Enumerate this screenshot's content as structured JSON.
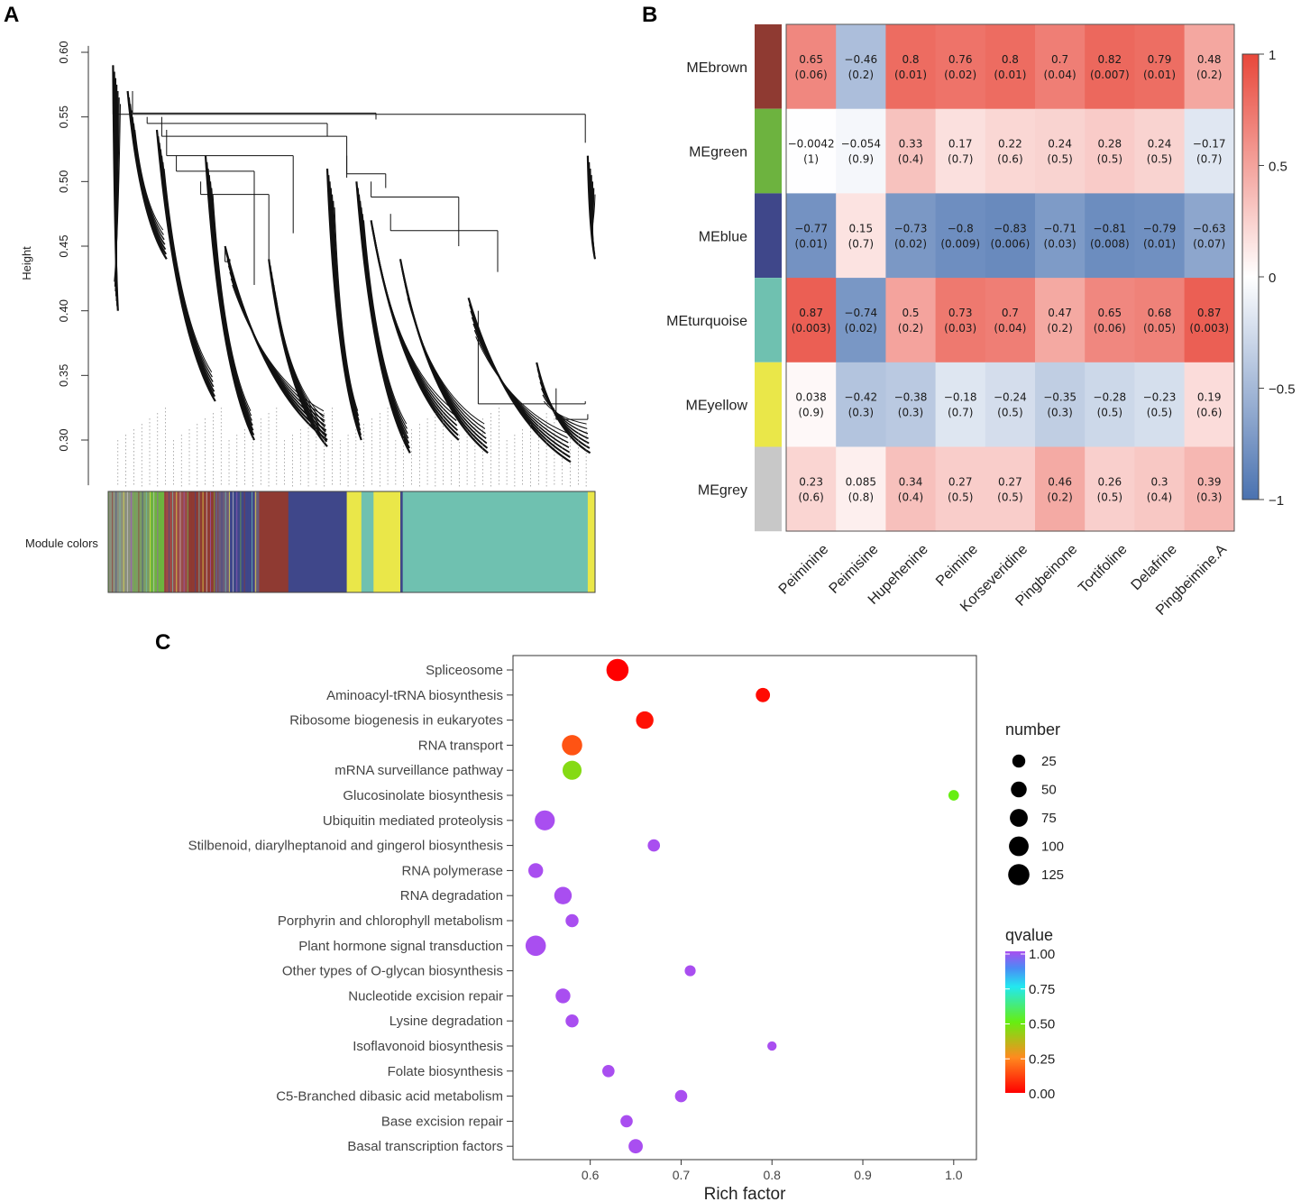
{
  "panels": {
    "a": {
      "letter": "A",
      "ylabel": "Height",
      "yticks": [
        0.6,
        0.55,
        0.5,
        0.45,
        0.4,
        0.35,
        0.3
      ],
      "ylim": [
        0.265,
        0.605
      ],
      "color_bar_label": "Module colors",
      "module_color_segments": [
        {
          "from": 0.0,
          "to": 0.05,
          "color": "#8a8f7c"
        },
        {
          "from": 0.05,
          "to": 0.085,
          "color": "#7c9c64"
        },
        {
          "from": 0.085,
          "to": 0.115,
          "color": "#6db33f"
        },
        {
          "from": 0.115,
          "to": 0.165,
          "color": "#9a4a48"
        },
        {
          "from": 0.165,
          "to": 0.22,
          "color": "#8f3a32"
        },
        {
          "from": 0.22,
          "to": 0.25,
          "color": "#6a5a7a"
        },
        {
          "from": 0.25,
          "to": 0.3,
          "color": "#3f478a"
        },
        {
          "from": 0.3,
          "to": 0.31,
          "color": "#6a5a7a"
        },
        {
          "from": 0.31,
          "to": 0.37,
          "color": "#8f3a32"
        },
        {
          "from": 0.37,
          "to": 0.49,
          "color": "#3f478a"
        },
        {
          "from": 0.49,
          "to": 0.52,
          "color": "#eae749"
        },
        {
          "from": 0.52,
          "to": 0.545,
          "color": "#6fc1b0"
        },
        {
          "from": 0.545,
          "to": 0.6,
          "color": "#eae749"
        },
        {
          "from": 0.6,
          "to": 0.605,
          "color": "#3f478a"
        },
        {
          "from": 0.605,
          "to": 0.985,
          "color": "#6fc1b0"
        },
        {
          "from": 0.985,
          "to": 1.0,
          "color": "#eae749"
        }
      ]
    },
    "b": {
      "letter": "B",
      "rows": [
        "MEbrown",
        "MEgreen",
        "MEblue",
        "MEturquoise",
        "MEyellow",
        "MEgrey"
      ],
      "row_colors": [
        "#8f3a32",
        "#6db33f",
        "#3f478a",
        "#6fc1b0",
        "#eae749",
        "#c8c8c8"
      ],
      "columns": [
        "Peiminine",
        "Peimisine",
        "Hupehenine",
        "Peimine",
        "Korseveridine",
        "Pingbeinone",
        "Tortifoline",
        "Delafrine",
        "Pingbeimine.A"
      ],
      "values": [
        [
          "0.65",
          "−0.46",
          "0.8",
          "0.76",
          "0.8",
          "0.7",
          "0.82",
          "0.79",
          "0.48"
        ],
        [
          "−0.0042",
          "−0.054",
          "0.33",
          "0.17",
          "0.22",
          "0.24",
          "0.28",
          "0.24",
          "−0.17"
        ],
        [
          "−0.77",
          "0.15",
          "−0.73",
          "−0.8",
          "−0.83",
          "−0.71",
          "−0.81",
          "−0.79",
          "−0.63"
        ],
        [
          "0.87",
          "−0.74",
          "0.5",
          "0.73",
          "0.7",
          "0.47",
          "0.65",
          "0.68",
          "0.87"
        ],
        [
          "0.038",
          "−0.42",
          "−0.38",
          "−0.18",
          "−0.24",
          "−0.35",
          "−0.28",
          "−0.23",
          "0.19"
        ],
        [
          "0.23",
          "0.085",
          "0.34",
          "0.27",
          "0.27",
          "0.46",
          "0.26",
          "0.3",
          "0.39"
        ]
      ],
      "pvalues": [
        [
          "(0.06)",
          "(0.2)",
          "(0.01)",
          "(0.02)",
          "(0.01)",
          "(0.04)",
          "(0.007)",
          "(0.01)",
          "(0.2)"
        ],
        [
          "(1)",
          "(0.9)",
          "(0.4)",
          "(0.7)",
          "(0.6)",
          "(0.5)",
          "(0.5)",
          "(0.5)",
          "(0.7)"
        ],
        [
          "(0.01)",
          "(0.7)",
          "(0.02)",
          "(0.009)",
          "(0.006)",
          "(0.03)",
          "(0.008)",
          "(0.01)",
          "(0.07)"
        ],
        [
          "(0.003)",
          "(0.02)",
          "(0.2)",
          "(0.03)",
          "(0.04)",
          "(0.2)",
          "(0.06)",
          "(0.05)",
          "(0.003)"
        ],
        [
          "(0.9)",
          "(0.3)",
          "(0.3)",
          "(0.7)",
          "(0.5)",
          "(0.3)",
          "(0.5)",
          "(0.5)",
          "(0.6)"
        ],
        [
          "(0.6)",
          "(0.8)",
          "(0.4)",
          "(0.5)",
          "(0.5)",
          "(0.2)",
          "(0.5)",
          "(0.4)",
          "(0.3)"
        ]
      ],
      "legend_ticks": [
        "1",
        "0.5",
        "0",
        "−0.5",
        "−1"
      ],
      "colors": {
        "low": "#4a72b0",
        "mid": "#ffffff",
        "high": "#e8473a"
      }
    },
    "c": {
      "letter": "C"
    }
  },
  "chart_data": {
    "type": "scatter",
    "title": "",
    "xlabel": "Rich factor",
    "ylabel": "",
    "xlim": [
      0.515,
      1.025
    ],
    "xticks": [
      "0.6",
      "0.7",
      "0.8",
      "0.9",
      "1.0"
    ],
    "xtick_values": [
      0.6,
      0.7,
      0.8,
      0.9,
      1.0
    ],
    "categories": [
      "Spliceosome",
      "Aminoacyl-tRNA biosynthesis",
      "Ribosome biogenesis in eukaryotes",
      "RNA transport",
      "mRNA surveillance pathway",
      "Glucosinolate biosynthesis",
      "Ubiquitin mediated proteolysis",
      "Stilbenoid, diarylheptanoid and gingerol biosynthesis",
      "RNA polymerase",
      "RNA degradation",
      "Porphyrin and chlorophyll metabolism",
      "Plant hormone signal transduction",
      "Other types of O-glycan biosynthesis",
      "Nucleotide excision repair",
      "Lysine degradation",
      "Isoflavonoid biosynthesis",
      "Folate biosynthesis",
      "C5-Branched dibasic acid metabolism",
      "Base excision repair",
      "Basal transcription factors"
    ],
    "x": [
      0.63,
      0.79,
      0.66,
      0.58,
      0.58,
      1.0,
      0.55,
      0.67,
      0.54,
      0.57,
      0.58,
      0.54,
      0.71,
      0.57,
      0.58,
      0.8,
      0.62,
      0.7,
      0.64,
      0.65
    ],
    "number": [
      140,
      35,
      70,
      110,
      90,
      10,
      105,
      20,
      40,
      70,
      25,
      110,
      12,
      40,
      25,
      5,
      20,
      20,
      20,
      35
    ],
    "qvalue": [
      0.0,
      0.02,
      0.03,
      0.15,
      0.45,
      0.5,
      1.0,
      1.0,
      1.0,
      1.0,
      1.0,
      1.0,
      1.0,
      1.0,
      1.0,
      1.0,
      1.0,
      1.0,
      1.0,
      1.0
    ],
    "size_legend": {
      "title": "number",
      "values": [
        25,
        50,
        75,
        100,
        125
      ],
      "labels": [
        "25",
        "50",
        "75",
        "100",
        "125"
      ]
    },
    "color_legend": {
      "title": "qvalue",
      "labels": [
        "1.00",
        "0.75",
        "0.50",
        "0.25",
        "0.00"
      ],
      "values": [
        1.0,
        0.75,
        0.5,
        0.25,
        0.0
      ]
    }
  }
}
